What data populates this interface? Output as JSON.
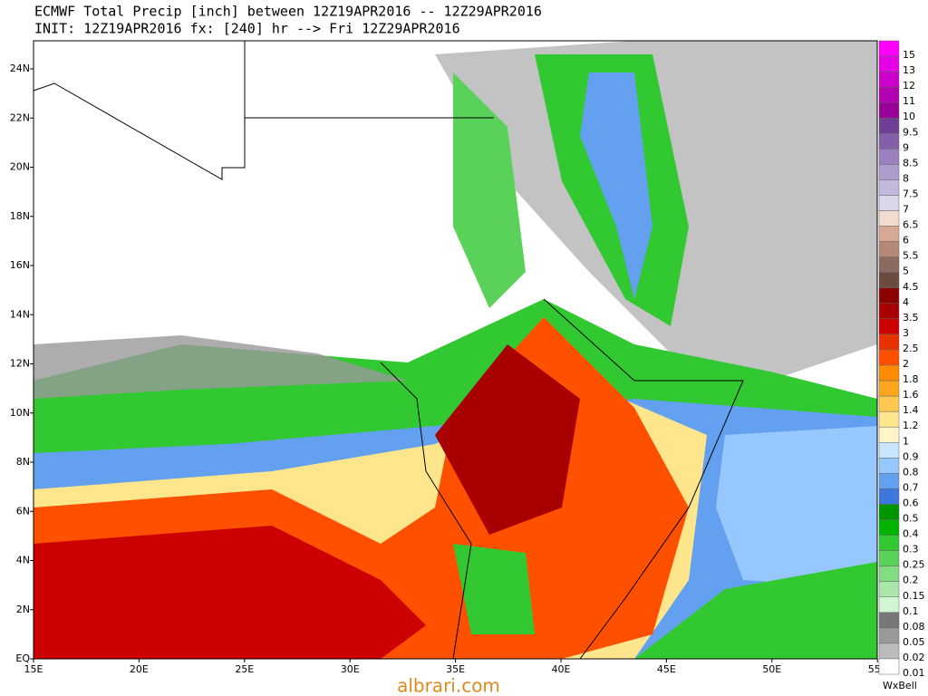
{
  "header": {
    "line1": "ECMWF Total Precip [inch] between 12Z19APR2016 -- 12Z29APR2016",
    "line2": "INIT: 12Z19APR2016 fx: [240] hr --> Fri 12Z29APR2016"
  },
  "map": {
    "lat_labels": [
      "EQ",
      "2N",
      "4N",
      "6N",
      "8N",
      "10N",
      "12N",
      "14N",
      "16N",
      "18N",
      "20N",
      "22N",
      "24N"
    ],
    "lon_labels": [
      "15E",
      "20E",
      "25E",
      "30E",
      "35E",
      "40E",
      "45E",
      "50E",
      "55E"
    ]
  },
  "legend": {
    "levels": [
      {
        "label": "15",
        "color": "#ff00ff"
      },
      {
        "label": "13",
        "color": "#e600e6"
      },
      {
        "label": "12",
        "color": "#cc00cc"
      },
      {
        "label": "11",
        "color": "#b300b3"
      },
      {
        "label": "10",
        "color": "#990099"
      },
      {
        "label": "9.5",
        "color": "#6f3f96"
      },
      {
        "label": "9",
        "color": "#8460aa"
      },
      {
        "label": "8.5",
        "color": "#9a80bd"
      },
      {
        "label": "8",
        "color": "#ae9ccc"
      },
      {
        "label": "7.5",
        "color": "#c4b8dc"
      },
      {
        "label": "7",
        "color": "#dcd6ea"
      },
      {
        "label": "6.5",
        "color": "#f2dccf"
      },
      {
        "label": "6",
        "color": "#d7a896"
      },
      {
        "label": "5.5",
        "color": "#b58878"
      },
      {
        "label": "5",
        "color": "#8b6a60"
      },
      {
        "label": "4.5",
        "color": "#6b4a40"
      },
      {
        "label": "4",
        "color": "#8b0000"
      },
      {
        "label": "3.5",
        "color": "#a80000"
      },
      {
        "label": "3",
        "color": "#cc0000"
      },
      {
        "label": "2.5",
        "color": "#e83200"
      },
      {
        "label": "2",
        "color": "#ff5000"
      },
      {
        "label": "1.8",
        "color": "#ff8c00"
      },
      {
        "label": "1.6",
        "color": "#ffa51e"
      },
      {
        "label": "1.4",
        "color": "#ffc850"
      },
      {
        "label": "1.2",
        "color": "#ffe68c"
      },
      {
        "label": "1",
        "color": "#fff5c8"
      },
      {
        "label": "0.9",
        "color": "#c8e6ff"
      },
      {
        "label": "0.8",
        "color": "#96c8ff"
      },
      {
        "label": "0.7",
        "color": "#64a0f0"
      },
      {
        "label": "0.6",
        "color": "#3c78dc"
      },
      {
        "label": "0.5",
        "color": "#009600"
      },
      {
        "label": "0.4",
        "color": "#00b400"
      },
      {
        "label": "0.3",
        "color": "#32c832"
      },
      {
        "label": "0.25",
        "color": "#5ad25a"
      },
      {
        "label": "0.2",
        "color": "#82dc82"
      },
      {
        "label": "0.15",
        "color": "#aae6aa"
      },
      {
        "label": "0.1",
        "color": "#d2f5d2"
      },
      {
        "label": "0.08",
        "color": "#777777"
      },
      {
        "label": "0.05",
        "color": "#999999"
      },
      {
        "label": "0.02",
        "color": "#bbbbbb"
      },
      {
        "label": "0.01",
        "color": "#ffffff"
      }
    ]
  },
  "footer": {
    "site": "albrari.com",
    "brand": "WxBell"
  }
}
